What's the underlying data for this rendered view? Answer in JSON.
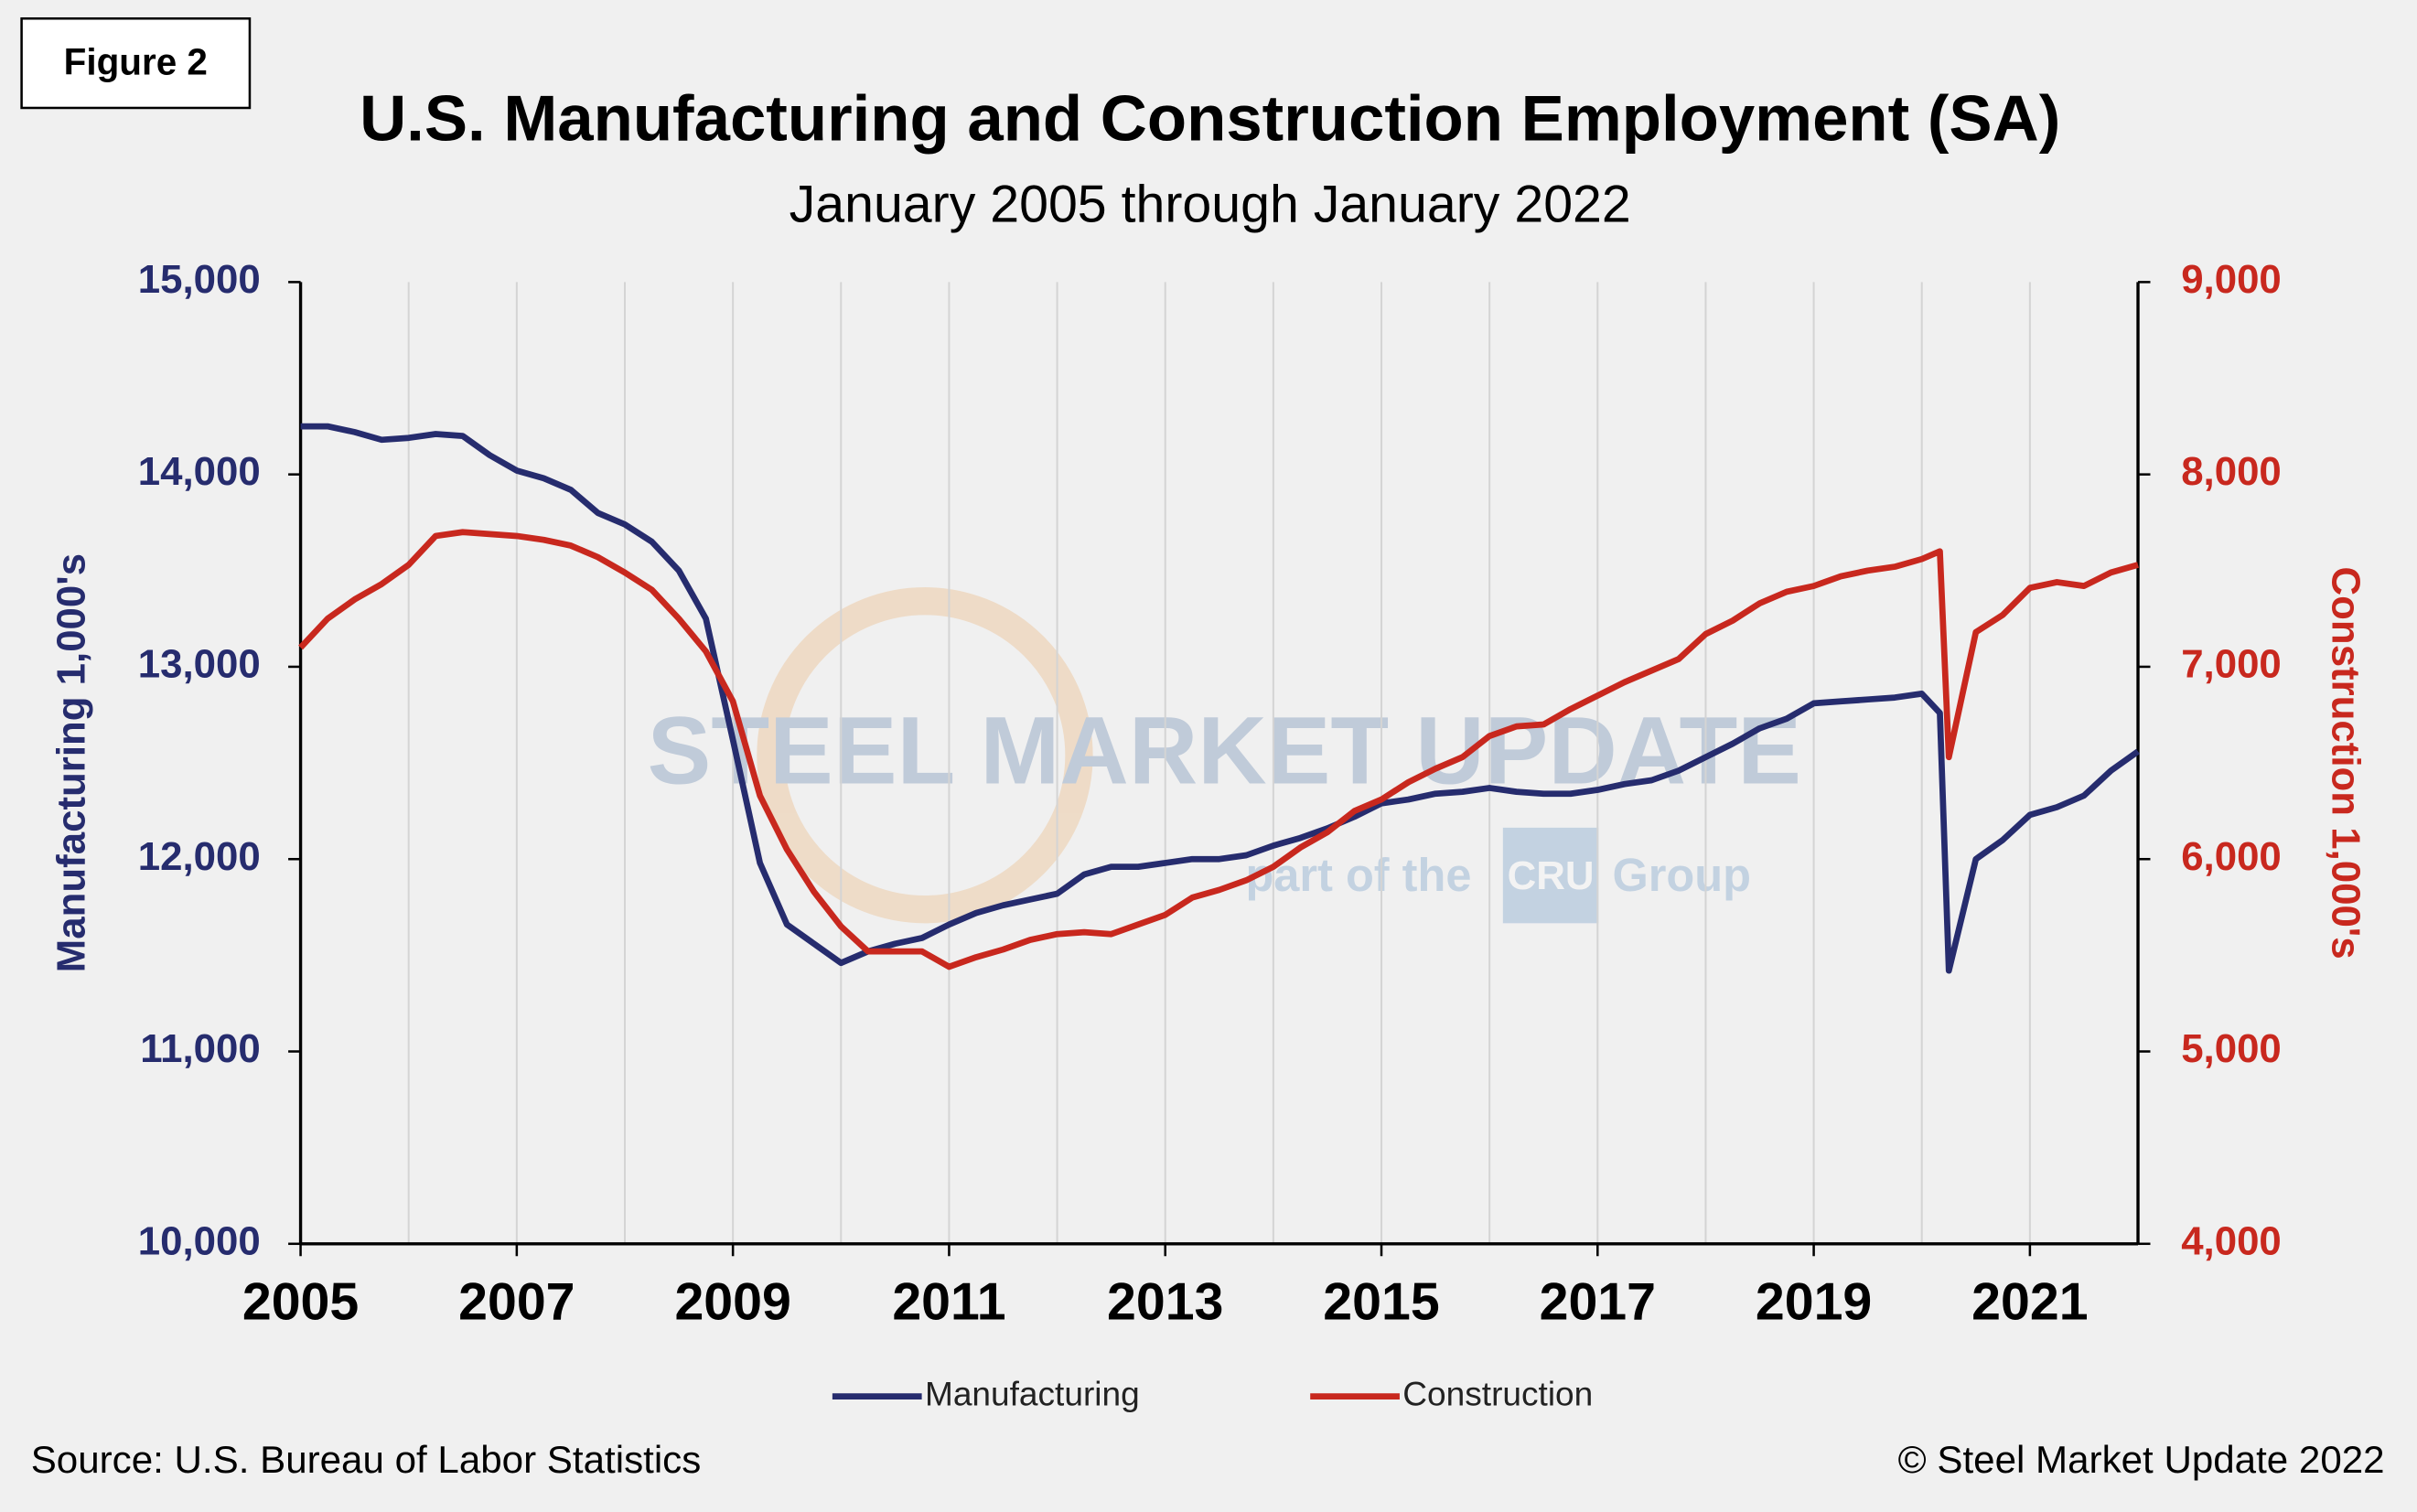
{
  "figure_label": "Figure 2",
  "source": "Source: U.S. Bureau  of Labor Statistics",
  "copyright": "© Steel Market Update 2022",
  "watermark": {
    "brand": "STEEL MARKET UPDATE",
    "tagline_pre": "part of the",
    "tagline_logo": "CRU",
    "tagline_post": "Group"
  },
  "chart_data": {
    "type": "line",
    "title": "U.S. Manufacturing and Construction Employment (SA)",
    "subtitle": "January 2005 through January 2022",
    "y_label": "Manufacturing 1,000's",
    "y2_label": "Construction 1,000's",
    "x": [
      2005,
      2005.25,
      2005.5,
      2005.75,
      2006,
      2006.25,
      2006.5,
      2006.75,
      2007,
      2007.25,
      2007.5,
      2007.75,
      2008,
      2008.25,
      2008.5,
      2008.75,
      2009,
      2009.25,
      2009.5,
      2009.75,
      2010,
      2010.25,
      2010.5,
      2010.75,
      2011,
      2011.25,
      2011.5,
      2011.75,
      2012,
      2012.25,
      2012.5,
      2012.75,
      2013,
      2013.25,
      2013.5,
      2013.75,
      2014,
      2014.25,
      2014.5,
      2014.75,
      2015,
      2015.25,
      2015.5,
      2015.75,
      2016,
      2016.25,
      2016.5,
      2016.75,
      2017,
      2017.25,
      2017.5,
      2017.75,
      2018,
      2018.25,
      2018.5,
      2018.75,
      2019,
      2019.25,
      2019.5,
      2019.75,
      2020,
      2020.167,
      2020.25,
      2020.5,
      2020.75,
      2021,
      2021.25,
      2021.5,
      2021.75,
      2022
    ],
    "series": [
      {
        "name": "Manufacturing",
        "color": "#262c6e",
        "axis": "y",
        "values": [
          14250,
          14250,
          14220,
          14180,
          14190,
          14210,
          14200,
          14100,
          14020,
          13980,
          13920,
          13800,
          13740,
          13650,
          13500,
          13250,
          12620,
          11980,
          11660,
          11560,
          11460,
          11520,
          11560,
          11590,
          11660,
          11720,
          11760,
          11790,
          11820,
          11920,
          11960,
          11960,
          11980,
          12000,
          12000,
          12020,
          12070,
          12110,
          12160,
          12220,
          12290,
          12310,
          12340,
          12350,
          12370,
          12350,
          12340,
          12340,
          12360,
          12390,
          12410,
          12460,
          12530,
          12600,
          12680,
          12730,
          12810,
          12820,
          12830,
          12840,
          12860,
          12760,
          11420,
          12000,
          12100,
          12230,
          12270,
          12330,
          12460,
          12560
        ]
      },
      {
        "name": "Construction",
        "color": "#c8281e",
        "axis": "y2",
        "values": [
          7100,
          7250,
          7350,
          7430,
          7530,
          7680,
          7700,
          7690,
          7680,
          7660,
          7630,
          7570,
          7490,
          7400,
          7250,
          7080,
          6820,
          6330,
          6050,
          5830,
          5650,
          5520,
          5520,
          5520,
          5440,
          5490,
          5530,
          5580,
          5610,
          5620,
          5610,
          5660,
          5710,
          5800,
          5840,
          5890,
          5960,
          6060,
          6140,
          6250,
          6310,
          6400,
          6470,
          6530,
          6640,
          6690,
          6700,
          6780,
          6850,
          6920,
          6980,
          7040,
          7170,
          7240,
          7330,
          7390,
          7420,
          7470,
          7500,
          7520,
          7560,
          7600,
          6530,
          7180,
          7270,
          7410,
          7440,
          7420,
          7490,
          7530
        ]
      }
    ],
    "xlim": [
      2005,
      2022
    ],
    "xticks": [
      2005,
      2007,
      2009,
      2011,
      2013,
      2015,
      2017,
      2019,
      2021
    ],
    "x_grid": [
      2005,
      2006,
      2007,
      2008,
      2009,
      2010,
      2011,
      2012,
      2013,
      2014,
      2015,
      2016,
      2017,
      2018,
      2019,
      2020,
      2021,
      2022
    ],
    "ylim": [
      10000,
      15000
    ],
    "yticks": [
      {
        "value": 10000,
        "label": "10,000"
      },
      {
        "value": 11000,
        "label": "11,000"
      },
      {
        "value": 12000,
        "label": "12,000"
      },
      {
        "value": 13000,
        "label": "13,000"
      },
      {
        "value": 14000,
        "label": "14,000"
      },
      {
        "value": 15000,
        "label": "15,000"
      }
    ],
    "y2lim": [
      4000,
      9000
    ],
    "y2ticks": [
      {
        "value": 4000,
        "label": "4,000"
      },
      {
        "value": 5000,
        "label": "5,000"
      },
      {
        "value": 6000,
        "label": "6,000"
      },
      {
        "value": 7000,
        "label": "7,000"
      },
      {
        "value": 8000,
        "label": "8,000"
      },
      {
        "value": 9000,
        "label": "9,000"
      }
    ],
    "y_color": "#262c6e",
    "y2_color": "#c8281e",
    "grid": true,
    "legend": "bottom"
  }
}
